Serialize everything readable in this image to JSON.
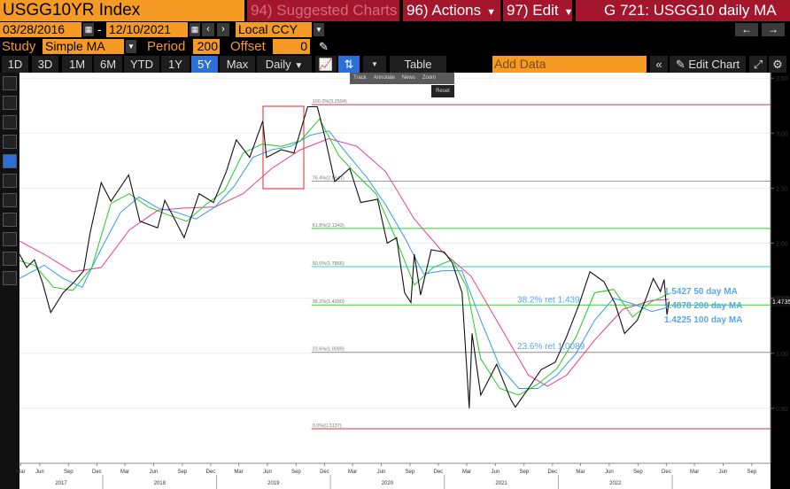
{
  "header": {
    "ticker": "USGG10YR Index",
    "suggested": "94) Suggested Charts",
    "actions": "96) Actions",
    "edit": "97) Edit",
    "title": "G 721: USGG10 daily MA"
  },
  "row2": {
    "start_date": "03/28/2016",
    "dash": "-",
    "end_date": "12/10/2021",
    "currency": "Local CCY",
    "back_arrow": "←",
    "fwd_arrow": "→"
  },
  "row3": {
    "study_label": "Study",
    "study_value": "Simple MA",
    "period_label": "Period",
    "period_value": "200",
    "offset_label": "Offset",
    "offset_value": "0"
  },
  "toolbar": {
    "ranges": [
      "1D",
      "3D",
      "1M",
      "6M",
      "YTD",
      "1Y",
      "5Y",
      "Max"
    ],
    "active_range": "5Y",
    "frequency": "Daily",
    "table": "Table",
    "add_data": "Add Data",
    "edit_chart": "Edit Chart"
  },
  "popup": {
    "items": [
      "Track",
      "Annotate",
      "News",
      "Zoom"
    ],
    "reset": "Reset"
  },
  "chart_data": {
    "type": "line",
    "yticks": [
      "3.50",
      "3.00",
      "2.50",
      "2.00",
      "1.50",
      "1.00",
      "0.50"
    ],
    "ytick_values": [
      3.5,
      3.0,
      2.5,
      2.0,
      1.5,
      1.0,
      0.5
    ],
    "ylim": [
      0.0,
      3.55
    ],
    "xlim": [
      "2016-03-28",
      "2022-10-31"
    ],
    "month_ticks": [
      {
        "label": "Mar",
        "date": "2016-04-01"
      },
      {
        "label": "Jun",
        "date": "2016-06-01"
      },
      {
        "label": "Sep",
        "date": "2016-09-01"
      },
      {
        "label": "Dec",
        "date": "2016-12-01"
      },
      {
        "label": "Mar",
        "date": "2017-03-01"
      },
      {
        "label": "Jun",
        "date": "2017-06-01"
      },
      {
        "label": "Sep",
        "date": "2017-09-01"
      },
      {
        "label": "Dec",
        "date": "2017-12-01"
      },
      {
        "label": "Mar",
        "date": "2018-03-01"
      },
      {
        "label": "Jun",
        "date": "2018-06-01"
      },
      {
        "label": "Sep",
        "date": "2018-09-01"
      },
      {
        "label": "Dec",
        "date": "2018-12-01"
      },
      {
        "label": "Mar",
        "date": "2019-03-01"
      },
      {
        "label": "Jun",
        "date": "2019-06-01"
      },
      {
        "label": "Sep",
        "date": "2019-09-01"
      },
      {
        "label": "Dec",
        "date": "2019-12-01"
      },
      {
        "label": "Mar",
        "date": "2020-03-01"
      },
      {
        "label": "Jun",
        "date": "2020-06-01"
      },
      {
        "label": "Sep",
        "date": "2020-09-01"
      },
      {
        "label": "Dec",
        "date": "2020-12-01"
      },
      {
        "label": "Mar",
        "date": "2021-03-01"
      },
      {
        "label": "Jun",
        "date": "2021-06-01"
      },
      {
        "label": "Sep",
        "date": "2021-09-01"
      },
      {
        "label": "Dec",
        "date": "2021-12-01"
      },
      {
        "label": "Mar",
        "date": "2022-03-01"
      },
      {
        "label": "Jun",
        "date": "2022-06-01"
      },
      {
        "label": "Sep",
        "date": "2022-09-01"
      }
    ],
    "year_labels": [
      {
        "label": "2017",
        "date": "2016-12-20"
      },
      {
        "label": "2018",
        "date": "2017-12-20"
      },
      {
        "label": "2019",
        "date": "2018-12-20"
      },
      {
        "label": "2020",
        "date": "2019-12-20"
      },
      {
        "label": "2021",
        "date": "2020-12-20"
      },
      {
        "label": "2022",
        "date": "2021-12-20"
      }
    ],
    "fib_levels": [
      {
        "label": "100.0%(3.2594)",
        "value": 3.2594,
        "color": "#e03030"
      },
      {
        "label": "76.4%(2.5641)",
        "value": 2.5641,
        "color": "#9a9a9a"
      },
      {
        "label": "61.8%(2.1343)",
        "value": 2.1343,
        "color": "#22dd22"
      },
      {
        "label": "50.0%(1.7866)",
        "value": 1.7866,
        "color": "#33cccc"
      },
      {
        "label": "38.2%(1.4390)",
        "value": 1.439,
        "color": "#22dd22"
      },
      {
        "label": "23.6%(1.0089)",
        "value": 1.0089,
        "color": "#9a9a9a"
      },
      {
        "label": "0.0%(0.3137)",
        "value": 0.3137,
        "color": "#e03030"
      }
    ],
    "annotations": [
      {
        "text": "38.2% ret 1.439",
        "date": "2020-08-10",
        "value": 1.46
      },
      {
        "text": "23.6% ret 1.0089",
        "date": "2020-08-10",
        "value": 1.04
      }
    ],
    "ma_labels": [
      "1.5427 50 day MA",
      "1.4878 200 day MA",
      "1.4225 100 day MA"
    ],
    "last_price": "1.4735",
    "last_value": 1.4735,
    "series": [
      {
        "name": "USGG10YR",
        "color": "#ffffff",
        "points": [
          [
            "2016-03-28",
            1.9
          ],
          [
            "2016-04-20",
            1.78
          ],
          [
            "2016-05-15",
            1.85
          ],
          [
            "2016-06-10",
            1.64
          ],
          [
            "2016-07-06",
            1.37
          ],
          [
            "2016-08-15",
            1.55
          ],
          [
            "2016-09-20",
            1.65
          ],
          [
            "2016-10-20",
            1.75
          ],
          [
            "2016-11-10",
            2.1
          ],
          [
            "2016-12-15",
            2.55
          ],
          [
            "2017-01-15",
            2.38
          ],
          [
            "2017-03-13",
            2.62
          ],
          [
            "2017-04-18",
            2.2
          ],
          [
            "2017-06-14",
            2.14
          ],
          [
            "2017-07-07",
            2.39
          ],
          [
            "2017-09-07",
            2.05
          ],
          [
            "2017-10-25",
            2.45
          ],
          [
            "2017-12-10",
            2.37
          ],
          [
            "2018-01-20",
            2.65
          ],
          [
            "2018-02-21",
            2.94
          ],
          [
            "2018-04-05",
            2.78
          ],
          [
            "2018-05-17",
            3.11
          ],
          [
            "2018-05-29",
            2.78
          ],
          [
            "2018-07-15",
            2.85
          ],
          [
            "2018-08-25",
            2.82
          ],
          [
            "2018-10-08",
            3.24
          ],
          [
            "2018-11-08",
            3.24
          ],
          [
            "2018-12-01",
            2.98
          ],
          [
            "2019-01-03",
            2.56
          ],
          [
            "2019-02-20",
            2.68
          ],
          [
            "2019-03-27",
            2.37
          ],
          [
            "2019-05-20",
            2.4
          ],
          [
            "2019-06-20",
            2.0
          ],
          [
            "2019-07-20",
            2.05
          ],
          [
            "2019-08-15",
            1.55
          ],
          [
            "2019-09-04",
            1.46
          ],
          [
            "2019-09-15",
            1.9
          ],
          [
            "2019-10-05",
            1.53
          ],
          [
            "2019-11-08",
            1.94
          ],
          [
            "2019-12-20",
            1.92
          ],
          [
            "2020-01-15",
            1.82
          ],
          [
            "2020-02-15",
            1.55
          ],
          [
            "2020-03-09",
            0.5
          ],
          [
            "2020-03-18",
            1.18
          ],
          [
            "2020-04-15",
            0.62
          ],
          [
            "2020-06-05",
            0.9
          ],
          [
            "2020-07-20",
            0.58
          ],
          [
            "2020-08-04",
            0.51
          ],
          [
            "2020-09-15",
            0.68
          ],
          [
            "2020-10-25",
            0.85
          ],
          [
            "2020-12-10",
            0.92
          ],
          [
            "2021-01-15",
            1.15
          ],
          [
            "2021-02-25",
            1.45
          ],
          [
            "2021-03-31",
            1.74
          ],
          [
            "2021-05-15",
            1.65
          ],
          [
            "2021-06-20",
            1.45
          ],
          [
            "2021-07-20",
            1.18
          ],
          [
            "2021-08-30",
            1.3
          ],
          [
            "2021-09-30",
            1.52
          ],
          [
            "2021-10-20",
            1.68
          ],
          [
            "2021-11-12",
            1.56
          ],
          [
            "2021-11-24",
            1.67
          ],
          [
            "2021-12-03",
            1.35
          ],
          [
            "2021-12-10",
            1.47
          ]
        ]
      },
      {
        "name": "50 day MA",
        "color": "#22cc22",
        "points": [
          [
            "2016-03-28",
            1.84
          ],
          [
            "2016-05-15",
            1.8
          ],
          [
            "2016-07-15",
            1.6
          ],
          [
            "2016-09-15",
            1.57
          ],
          [
            "2016-11-15",
            1.78
          ],
          [
            "2017-01-15",
            2.36
          ],
          [
            "2017-03-15",
            2.45
          ],
          [
            "2017-05-15",
            2.33
          ],
          [
            "2017-07-15",
            2.26
          ],
          [
            "2017-09-15",
            2.2
          ],
          [
            "2017-11-15",
            2.35
          ],
          [
            "2018-01-15",
            2.48
          ],
          [
            "2018-03-15",
            2.82
          ],
          [
            "2018-05-15",
            2.9
          ],
          [
            "2018-07-15",
            2.88
          ],
          [
            "2018-09-15",
            2.93
          ],
          [
            "2018-11-15",
            3.13
          ],
          [
            "2019-01-15",
            2.8
          ],
          [
            "2019-03-15",
            2.62
          ],
          [
            "2019-05-15",
            2.45
          ],
          [
            "2019-07-15",
            2.06
          ],
          [
            "2019-09-15",
            1.62
          ],
          [
            "2019-11-15",
            1.78
          ],
          [
            "2020-01-15",
            1.85
          ],
          [
            "2020-03-01",
            1.6
          ],
          [
            "2020-04-15",
            0.95
          ],
          [
            "2020-06-15",
            0.68
          ],
          [
            "2020-08-15",
            0.62
          ],
          [
            "2020-10-15",
            0.72
          ],
          [
            "2020-12-15",
            0.86
          ],
          [
            "2021-02-15",
            1.15
          ],
          [
            "2021-04-15",
            1.55
          ],
          [
            "2021-06-15",
            1.58
          ],
          [
            "2021-08-15",
            1.33
          ],
          [
            "2021-10-15",
            1.47
          ],
          [
            "2021-12-10",
            1.54
          ]
        ]
      },
      {
        "name": "100 day MA",
        "color": "#3399ee",
        "points": [
          [
            "2016-03-28",
            1.68
          ],
          [
            "2016-06-15",
            1.8
          ],
          [
            "2016-08-15",
            1.68
          ],
          [
            "2016-10-15",
            1.6
          ],
          [
            "2016-12-15",
            1.95
          ],
          [
            "2017-02-15",
            2.28
          ],
          [
            "2017-04-15",
            2.42
          ],
          [
            "2017-06-15",
            2.32
          ],
          [
            "2017-08-15",
            2.28
          ],
          [
            "2017-10-15",
            2.22
          ],
          [
            "2017-12-15",
            2.33
          ],
          [
            "2018-02-15",
            2.52
          ],
          [
            "2018-04-15",
            2.78
          ],
          [
            "2018-06-15",
            2.85
          ],
          [
            "2018-08-15",
            2.88
          ],
          [
            "2018-10-15",
            2.98
          ],
          [
            "2018-12-15",
            3.02
          ],
          [
            "2019-02-15",
            2.8
          ],
          [
            "2019-04-15",
            2.6
          ],
          [
            "2019-06-15",
            2.35
          ],
          [
            "2019-08-15",
            2.05
          ],
          [
            "2019-10-15",
            1.72
          ],
          [
            "2019-12-15",
            1.75
          ],
          [
            "2020-02-15",
            1.75
          ],
          [
            "2020-04-15",
            1.3
          ],
          [
            "2020-06-15",
            0.88
          ],
          [
            "2020-08-15",
            0.68
          ],
          [
            "2020-10-15",
            0.68
          ],
          [
            "2020-12-15",
            0.8
          ],
          [
            "2021-02-15",
            1.0
          ],
          [
            "2021-04-15",
            1.3
          ],
          [
            "2021-06-15",
            1.5
          ],
          [
            "2021-08-15",
            1.45
          ],
          [
            "2021-10-15",
            1.38
          ],
          [
            "2021-12-10",
            1.42
          ]
        ]
      },
      {
        "name": "200 day MA",
        "color": "#ee3c8a",
        "points": [
          [
            "2016-03-28",
            2.02
          ],
          [
            "2016-06-15",
            1.9
          ],
          [
            "2016-09-15",
            1.74
          ],
          [
            "2016-12-15",
            1.78
          ],
          [
            "2017-03-15",
            2.12
          ],
          [
            "2017-06-15",
            2.3
          ],
          [
            "2017-09-15",
            2.32
          ],
          [
            "2017-12-15",
            2.33
          ],
          [
            "2018-03-15",
            2.45
          ],
          [
            "2018-06-15",
            2.68
          ],
          [
            "2018-09-15",
            2.85
          ],
          [
            "2018-12-15",
            2.95
          ],
          [
            "2019-03-15",
            2.88
          ],
          [
            "2019-06-15",
            2.65
          ],
          [
            "2019-09-15",
            2.22
          ],
          [
            "2019-12-15",
            1.92
          ],
          [
            "2020-03-15",
            1.7
          ],
          [
            "2020-06-15",
            1.25
          ],
          [
            "2020-09-15",
            0.8
          ],
          [
            "2020-11-15",
            0.7
          ],
          [
            "2021-01-15",
            0.8
          ],
          [
            "2021-04-15",
            1.12
          ],
          [
            "2021-07-15",
            1.4
          ],
          [
            "2021-10-15",
            1.48
          ],
          [
            "2021-12-10",
            1.49
          ]
        ]
      }
    ]
  }
}
